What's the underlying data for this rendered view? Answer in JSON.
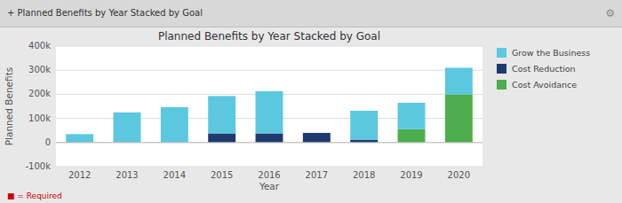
{
  "chart_data": {
    "type": "bar",
    "stacked": true,
    "title": "Planned Benefits by Year Stacked by Goal",
    "x_label": "Year",
    "y_label": "Planned Benefits",
    "annotations": [
      "+ Planned Benefits by Year Stacked by Goal",
      "⚙",
      "■ = Required"
    ],
    "categories": [
      "2012",
      "2013",
      "2014",
      "2015",
      "2016",
      "2017",
      "2018",
      "2019",
      "2020"
    ],
    "series": [
      {
        "name": "Cost Avoidance",
        "color": "#4cae4c",
        "values": [
          0,
          0,
          0,
          0,
          0,
          0,
          0,
          55000,
          200000
        ]
      },
      {
        "name": "Cost Reduction",
        "color": "#1f3a6e",
        "values": [
          0,
          0,
          0,
          38000,
          38000,
          40000,
          12000,
          0,
          0
        ]
      },
      {
        "name": "Grow the Business",
        "color": "#5bc8e0",
        "values": [
          35000,
          125000,
          147000,
          155000,
          175000,
          0,
          120000,
          110000,
          110000
        ]
      }
    ],
    "ylim": [
      -100000,
      400000
    ],
    "yticks": [
      {
        "value": -100000,
        "label": "-100k"
      },
      0,
      {
        "value": 100000,
        "label": "100k"
      },
      {
        "value": 200000,
        "label": "200k"
      },
      {
        "value": 300000,
        "label": "300k"
      },
      {
        "value": 400000,
        "label": "400k"
      }
    ],
    "grid": true,
    "legend": "right"
  }
}
